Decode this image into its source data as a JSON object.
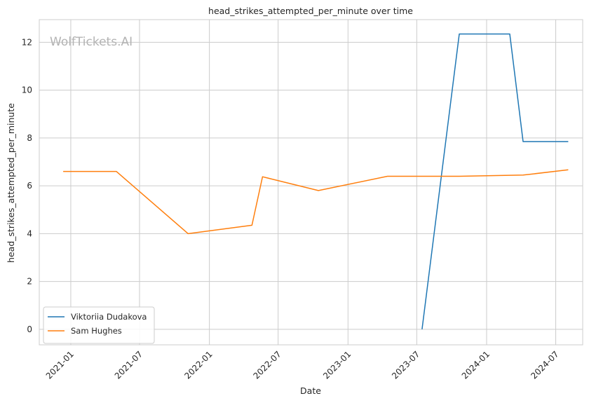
{
  "watermark": "WolfTickets.AI",
  "chart_data": {
    "type": "line",
    "title": "head_strikes_attempted_per_minute over time",
    "xlabel": "Date",
    "ylabel": "head_strikes_attempted_per_minute",
    "ylim": [
      -0.65,
      12.95
    ],
    "xlim": [
      "2020-10-10",
      "2024-09-10"
    ],
    "x_ticks": [
      "2021-01",
      "2021-07",
      "2022-01",
      "2022-07",
      "2023-01",
      "2023-07",
      "2024-01",
      "2024-07"
    ],
    "y_ticks": [
      0,
      2,
      4,
      6,
      8,
      10,
      12
    ],
    "grid": true,
    "legend_position": "lower-left",
    "series": [
      {
        "name": "Viktoriia Dudakova",
        "color": "#1f77b4",
        "points": [
          {
            "x": "2023-07-15",
            "y": 0.0
          },
          {
            "x": "2023-10-21",
            "y": 12.35
          },
          {
            "x": "2024-03-02",
            "y": 12.35
          },
          {
            "x": "2024-04-06",
            "y": 7.85
          },
          {
            "x": "2024-08-03",
            "y": 7.85
          }
        ]
      },
      {
        "name": "Sam Hughes",
        "color": "#ff7f0e",
        "points": [
          {
            "x": "2020-12-12",
            "y": 6.6
          },
          {
            "x": "2021-05-01",
            "y": 6.6
          },
          {
            "x": "2021-11-06",
            "y": 4.0
          },
          {
            "x": "2022-04-23",
            "y": 4.35
          },
          {
            "x": "2022-05-21",
            "y": 6.38
          },
          {
            "x": "2022-10-15",
            "y": 5.8
          },
          {
            "x": "2023-04-15",
            "y": 6.4
          },
          {
            "x": "2023-10-21",
            "y": 6.4
          },
          {
            "x": "2024-04-06",
            "y": 6.45
          },
          {
            "x": "2024-08-03",
            "y": 6.67
          }
        ]
      }
    ]
  }
}
